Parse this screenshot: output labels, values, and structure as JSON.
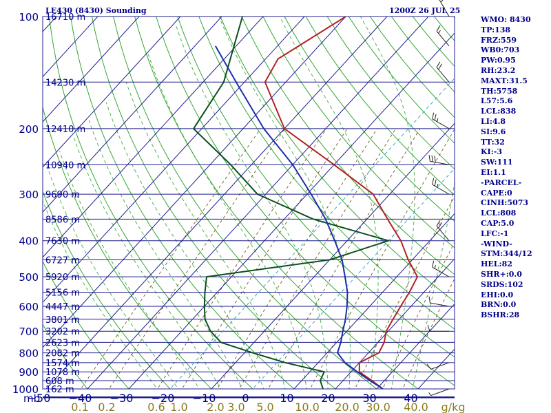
{
  "chart_data": {
    "type": "skew-t log-p sounding",
    "title": "LE430 (8430) Sounding",
    "valid_time": "1200Z 26 JUL 25",
    "pressure_axis_label": "mb",
    "pressure_ticks": [
      100,
      200,
      300,
      400,
      500,
      600,
      700,
      800,
      900,
      1000
    ],
    "temperature_ticks": [
      -50,
      -40,
      -30,
      -20,
      -10,
      0,
      10,
      20,
      30,
      40
    ],
    "mixing_ratio_label": "g/kg",
    "mixing_ratio_ticks": [
      "0.1",
      "0.2",
      "0.6",
      "1.0",
      "2.0",
      "3.0",
      "5.0",
      "10.0",
      "20.0",
      "30.0",
      "40.0"
    ],
    "height_labels": [
      {
        "p": 100,
        "label": "16710 m"
      },
      {
        "p": 150,
        "label": "14230 m"
      },
      {
        "p": 200,
        "label": "12410 m"
      },
      {
        "p": 250,
        "label": "10940 m"
      },
      {
        "p": 300,
        "label": "9690 m"
      },
      {
        "p": 350,
        "label": "8586 m"
      },
      {
        "p": 400,
        "label": "7630 m"
      },
      {
        "p": 450,
        "label": "6727 m"
      },
      {
        "p": 500,
        "label": "5920 m"
      },
      {
        "p": 550,
        "label": "5156 m"
      },
      {
        "p": 600,
        "label": "4447 m"
      },
      {
        "p": 650,
        "label": "3801 m"
      },
      {
        "p": 700,
        "label": "3202 m"
      },
      {
        "p": 750,
        "label": "2623 m"
      },
      {
        "p": 800,
        "label": "2082 m"
      },
      {
        "p": 850,
        "label": "1574 m"
      },
      {
        "p": 900,
        "label": "1078 m"
      },
      {
        "p": 950,
        "label": "608 m"
      },
      {
        "p": 1000,
        "label": "162 m"
      }
    ],
    "series": [
      {
        "name": "Temperature",
        "color": "#b22222",
        "points": [
          [
            1000,
            31.5
          ],
          [
            950,
            27
          ],
          [
            900,
            22
          ],
          [
            850,
            20
          ],
          [
            800,
            22.5
          ],
          [
            750,
            21.5
          ],
          [
            700,
            19.5
          ],
          [
            650,
            18.5
          ],
          [
            600,
            17.5
          ],
          [
            550,
            16.5
          ],
          [
            500,
            15
          ],
          [
            450,
            9
          ],
          [
            400,
            3
          ],
          [
            350,
            -5
          ],
          [
            300,
            -14
          ],
          [
            250,
            -30
          ],
          [
            200,
            -50
          ],
          [
            150,
            -65
          ],
          [
            130,
            -67
          ],
          [
            100,
            -60
          ]
        ]
      },
      {
        "name": "Dewpoint",
        "color": "#0b4f1e",
        "points": [
          [
            1000,
            17
          ],
          [
            950,
            14.5
          ],
          [
            900,
            13.5
          ],
          [
            850,
            2
          ],
          [
            800,
            -8
          ],
          [
            750,
            -18
          ],
          [
            700,
            -23
          ],
          [
            650,
            -27
          ],
          [
            600,
            -30
          ],
          [
            550,
            -33
          ],
          [
            500,
            -36
          ],
          [
            450,
            -10
          ],
          [
            400,
            0
          ],
          [
            350,
            -23
          ],
          [
            300,
            -42
          ],
          [
            250,
            -55
          ],
          [
            200,
            -72
          ],
          [
            150,
            -75
          ],
          [
            100,
            -85
          ]
        ]
      },
      {
        "name": "Parcel",
        "color": "#1a2fa8",
        "points": [
          [
            1000,
            31.5
          ],
          [
            950,
            26.5
          ],
          [
            900,
            21.5
          ],
          [
            850,
            16.5
          ],
          [
            800,
            12.5
          ],
          [
            750,
            11
          ],
          [
            700,
            9
          ],
          [
            650,
            7
          ],
          [
            600,
            4.5
          ],
          [
            550,
            1.5
          ],
          [
            500,
            -2.5
          ],
          [
            450,
            -7
          ],
          [
            400,
            -13
          ],
          [
            350,
            -20
          ],
          [
            300,
            -29
          ],
          [
            250,
            -40
          ],
          [
            200,
            -55
          ],
          [
            150,
            -72
          ],
          [
            120,
            -85
          ]
        ]
      }
    ],
    "wind_barbs": [
      {
        "p": 1000,
        "dir": 250,
        "spd": 5
      },
      {
        "p": 850,
        "dir": 250,
        "spd": 10
      },
      {
        "p": 700,
        "dir": 270,
        "spd": 10
      },
      {
        "p": 600,
        "dir": 280,
        "spd": 10
      },
      {
        "p": 500,
        "dir": 300,
        "spd": 15
      },
      {
        "p": 400,
        "dir": 320,
        "spd": 20
      },
      {
        "p": 300,
        "dir": 300,
        "spd": 25
      },
      {
        "p": 250,
        "dir": 280,
        "spd": 30
      },
      {
        "p": 200,
        "dir": 300,
        "spd": 25
      },
      {
        "p": 150,
        "dir": 320,
        "spd": 20
      },
      {
        "p": 120,
        "dir": 320,
        "spd": 15
      },
      {
        "p": 100,
        "dir": 330,
        "spd": 15
      }
    ]
  },
  "indices": [
    "WMO: 8430",
    "TP:138",
    "FRZ:559",
    "WB0:703",
    "PW:0.95",
    "RH:23.2",
    "MAXT:31.5",
    "TH:5758",
    "L57:5.6",
    "LCL:838",
    "LI:4.8",
    "SI:9.6",
    "TT:32",
    "KI:-3",
    "SW:111",
    "EI:1.1",
    "-PARCEL-",
    "CAPE:0",
    "CINH:5073",
    "LCL:808",
    "CAP:5.0",
    "LFC:-1",
    "-WIND-",
    "STM:344/12",
    "HEL:82",
    "SHR+:0.0",
    "SRDS:102",
    "EHI:0.0",
    "BRN:0.0",
    "BSHR:28"
  ],
  "colors": {
    "isobar": "#1c1c8c",
    "isotherm": "#1c1c8c",
    "dry_adiabat": "#33a533",
    "moist_adiabat": "#33a533",
    "mixing_ratio": "#6b5a1a",
    "isotherm_0c": "#3aa7c9",
    "text": "#00008b"
  }
}
